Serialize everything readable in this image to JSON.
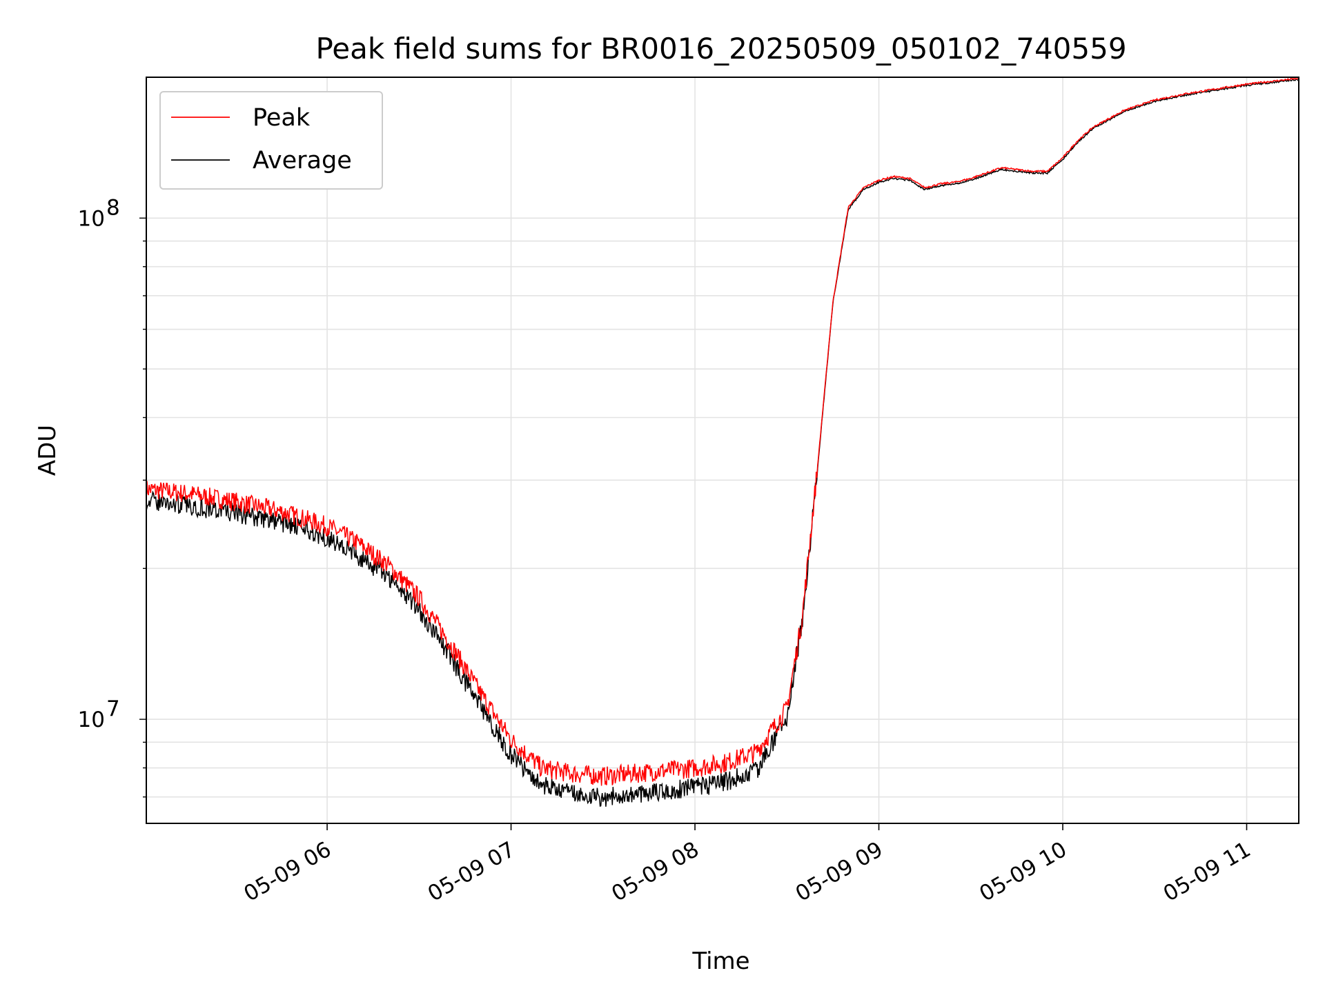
{
  "chart_data": {
    "type": "line",
    "title": "Peak field sums for BR0016_20250509_050102_740559",
    "xlabel": "Time",
    "ylabel": "ADU",
    "yscale": "log",
    "xlim": [
      "05-09 05:01",
      "05-09 11:17"
    ],
    "ylim": [
      6200000,
      191000000
    ],
    "grid": true,
    "legend_position": "upper left",
    "x_tick_labels": [
      "05-09 06",
      "05-09 07",
      "05-09 08",
      "05-09 09",
      "05-09 10",
      "05-09 11"
    ],
    "x_tick_values": [
      "05-09 06:00",
      "05-09 07:00",
      "05-09 08:00",
      "05-09 09:00",
      "05-09 10:00",
      "05-09 11:00"
    ],
    "y_tick_base": "10",
    "y_tick_exponents": [
      "7",
      "8"
    ],
    "y_tick_values": [
      10000000,
      100000000
    ],
    "x": [
      "05:01",
      "05:15",
      "05:30",
      "05:45",
      "06:00",
      "06:10",
      "06:20",
      "06:30",
      "06:40",
      "06:50",
      "07:00",
      "07:10",
      "07:20",
      "07:30",
      "07:40",
      "07:50",
      "08:00",
      "08:10",
      "08:20",
      "08:30",
      "08:35",
      "08:40",
      "08:45",
      "08:50",
      "08:55",
      "09:00",
      "09:05",
      "09:10",
      "09:15",
      "09:20",
      "09:25",
      "09:30",
      "09:35",
      "09:40",
      "09:45",
      "09:50",
      "09:55",
      "10:00",
      "10:05",
      "10:10",
      "10:20",
      "10:30",
      "10:40",
      "10:50",
      "11:00",
      "11:10",
      "11:17"
    ],
    "series": [
      {
        "name": "Peak",
        "color": "#ff0000",
        "values": [
          28800000,
          28200000,
          27200000,
          26000000,
          24300000,
          22500000,
          20300000,
          17500000,
          14200000,
          11300000,
          9100000,
          8000000,
          7800000,
          7700000,
          7800000,
          7900000,
          8000000,
          8200000,
          8600000,
          10500000,
          16000000,
          32000000,
          68000000,
          105000000,
          115000000,
          119000000,
          121000000,
          120000000,
          115000000,
          117000000,
          118000000,
          120000000,
          123000000,
          126000000,
          125000000,
          124000000,
          124000000,
          132000000,
          143000000,
          152000000,
          164000000,
          172000000,
          177000000,
          181000000,
          185000000,
          188000000,
          190000000
        ]
      },
      {
        "name": "Average",
        "color": "#000000",
        "values": [
          27300000,
          26700000,
          25800000,
          24700000,
          23100000,
          21200000,
          19300000,
          16600000,
          13400000,
          10600000,
          8500000,
          7400000,
          7100000,
          7000000,
          7100000,
          7200000,
          7300000,
          7500000,
          7900000,
          10100000,
          15700000,
          31700000,
          67600000,
          104000000,
          114000000,
          118000000,
          120000000,
          119000000,
          114000000,
          116000000,
          117000000,
          119000000,
          122000000,
          125000000,
          124000000,
          123000000,
          123000000,
          131000000,
          142000000,
          151000000,
          163000000,
          171000000,
          176000000,
          180000000,
          184000000,
          187000000,
          189000000
        ]
      }
    ]
  }
}
